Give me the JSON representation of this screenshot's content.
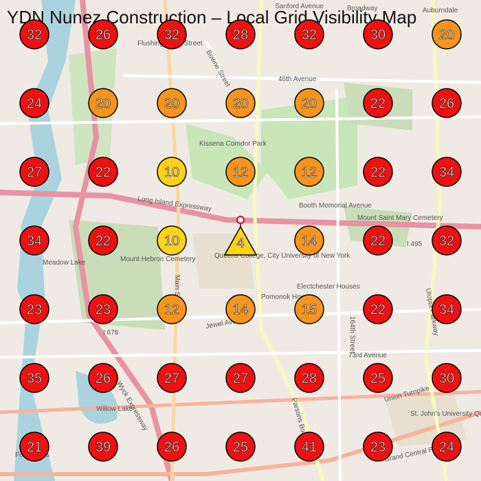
{
  "title": "YDN Nunez Construction – Local Grid Visibility Map",
  "grid": {
    "values": [
      [
        32,
        26,
        32,
        28,
        32,
        30,
        20
      ],
      [
        24,
        20,
        20,
        20,
        20,
        22,
        26
      ],
      [
        27,
        22,
        10,
        12,
        12,
        22,
        34
      ],
      [
        34,
        22,
        10,
        null,
        14,
        22,
        32
      ],
      [
        23,
        23,
        12,
        14,
        15,
        22,
        34
      ],
      [
        35,
        26,
        27,
        27,
        28,
        25,
        30
      ],
      [
        21,
        39,
        26,
        25,
        41,
        23,
        24
      ]
    ],
    "colors": [
      [
        "#ee1111",
        "#ee1111",
        "#ee1111",
        "#ee1111",
        "#ee1111",
        "#ee1111",
        "#f7941d"
      ],
      [
        "#ee1111",
        "#f7941d",
        "#f7941d",
        "#f7941d",
        "#f7941d",
        "#ee1111",
        "#ee1111"
      ],
      [
        "#ee1111",
        "#ee1111",
        "#ffd21a",
        "#f7941d",
        "#f7941d",
        "#ee1111",
        "#ee1111"
      ],
      [
        "#ee1111",
        "#ee1111",
        "#ffd21a",
        null,
        "#f7941d",
        "#ee1111",
        "#ee1111"
      ],
      [
        "#ee1111",
        "#ee1111",
        "#f7941d",
        "#f7941d",
        "#f7941d",
        "#ee1111",
        "#ee1111"
      ],
      [
        "#ee1111",
        "#ee1111",
        "#ee1111",
        "#ee1111",
        "#ee1111",
        "#ee1111",
        "#ee1111"
      ],
      [
        "#ee1111",
        "#ee1111",
        "#ee1111",
        "#ee1111",
        "#ee1111",
        "#ee1111",
        "#ee1111"
      ]
    ]
  },
  "marker": {
    "value": 4,
    "color": "#ffd21a"
  },
  "map_labels": [
    "Flushing–Main Street",
    "46th Avenue",
    "Bowne Street",
    "Sanford Avenue",
    "Broadway",
    "Auburndale",
    "Kissena Corridor Park",
    "Long Island Expressway",
    "Booth Memorial Avenue",
    "Mount Hebron Cemetery",
    "Queens College, City University of New York",
    "Pomonok Houses",
    "Electchester Houses",
    "Jewel Avenue",
    "73rd Avenue",
    "Meadow Lake",
    "Willow Lake",
    "Union Turnpike",
    "Grand Central Parkway",
    "St. John's University Queens Campus",
    "Parsons Boulevard",
    "164th Street",
    "Main Street",
    "Van Wyck Expressway",
    "Utopia Parkway",
    "Mount Saint Mary Cemetery",
    "Forest Hills",
    "I 495",
    "I 678"
  ]
}
